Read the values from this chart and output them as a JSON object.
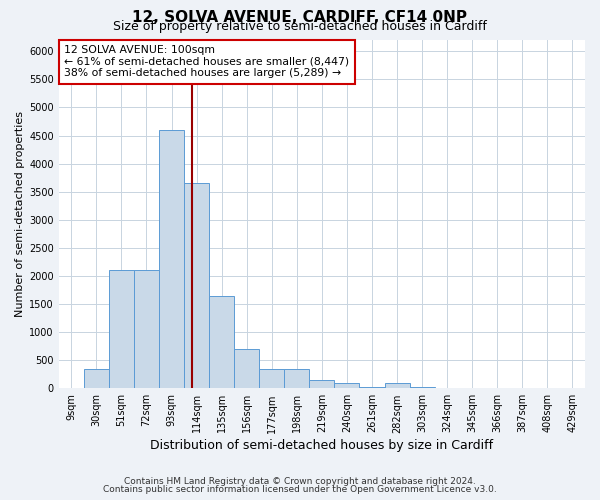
{
  "title": "12, SOLVA AVENUE, CARDIFF, CF14 0NP",
  "subtitle": "Size of property relative to semi-detached houses in Cardiff",
  "xlabel": "Distribution of semi-detached houses by size in Cardiff",
  "ylabel": "Number of semi-detached properties",
  "categories": [
    "9sqm",
    "30sqm",
    "51sqm",
    "72sqm",
    "93sqm",
    "114sqm",
    "135sqm",
    "156sqm",
    "177sqm",
    "198sqm",
    "219sqm",
    "240sqm",
    "261sqm",
    "282sqm",
    "303sqm",
    "324sqm",
    "345sqm",
    "366sqm",
    "387sqm",
    "408sqm",
    "429sqm"
  ],
  "values": [
    10,
    350,
    2100,
    2100,
    4600,
    3650,
    1650,
    700,
    350,
    350,
    150,
    100,
    30,
    100,
    20,
    10,
    5,
    5,
    5,
    5,
    5
  ],
  "bar_color": "#c9d9e8",
  "bar_edge_color": "#5b9bd5",
  "property_sqm": 100,
  "annotation_text_line1": "12 SOLVA AVENUE: 100sqm",
  "annotation_text_line2": "← 61% of semi-detached houses are smaller (8,447)",
  "annotation_text_line3": "38% of semi-detached houses are larger (5,289) →",
  "ylim": [
    0,
    6200
  ],
  "yticks": [
    0,
    500,
    1000,
    1500,
    2000,
    2500,
    3000,
    3500,
    4000,
    4500,
    5000,
    5500,
    6000
  ],
  "footer_line1": "Contains HM Land Registry data © Crown copyright and database right 2024.",
  "footer_line2": "Contains public sector information licensed under the Open Government Licence v3.0.",
  "bg_color": "#eef2f7",
  "plot_bg_color": "#ffffff",
  "grid_color": "#c8d4e0",
  "annotation_box_color": "#ffffff",
  "annotation_box_edge": "#cc0000",
  "vline_color": "#990000",
  "title_fontsize": 11,
  "subtitle_fontsize": 9,
  "xlabel_fontsize": 9,
  "ylabel_fontsize": 8,
  "tick_fontsize": 7,
  "footer_fontsize": 6.5
}
